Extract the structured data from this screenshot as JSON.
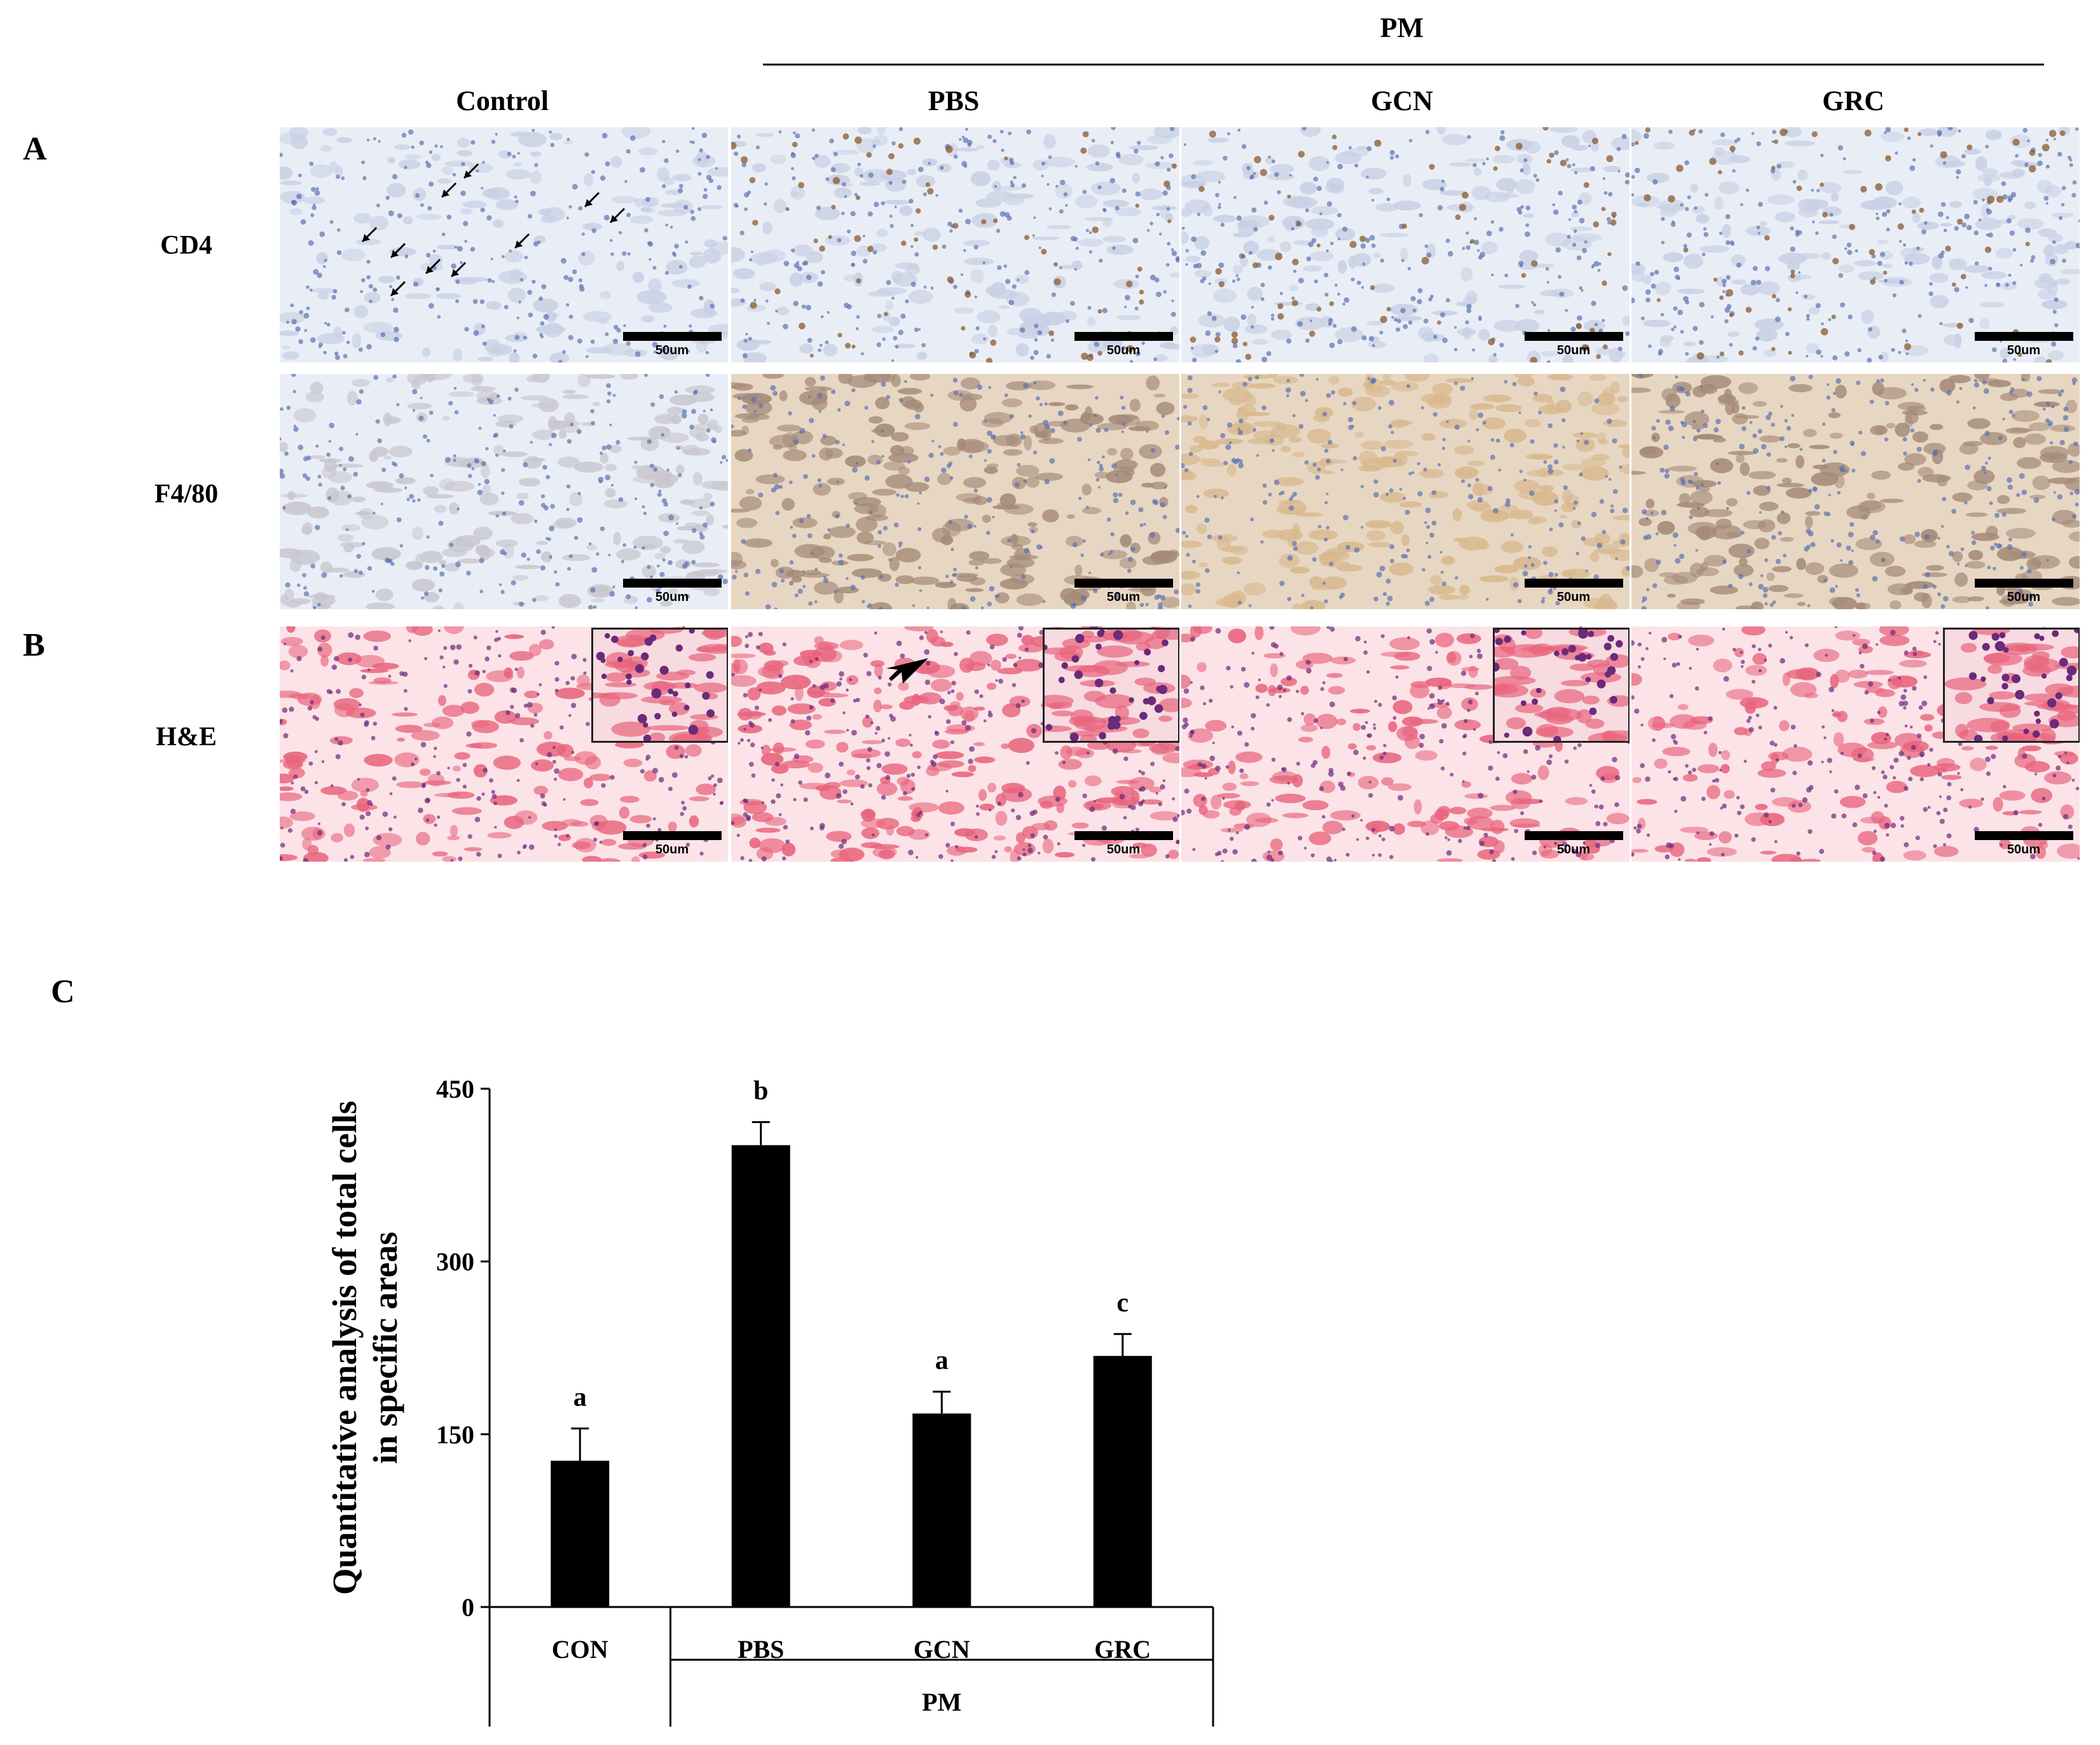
{
  "figure": {
    "panel_letters": [
      "A",
      "B",
      "C"
    ],
    "group_label": "PM",
    "columns": [
      "Control",
      "PBS",
      "GCN",
      "GRC"
    ],
    "rows": [
      "CD4",
      "F4/80",
      "H&E"
    ],
    "scale_bar_label": "50um"
  },
  "colors": {
    "ihc_background": "#e9eef6",
    "ihc_nuclei": "#5c72b0",
    "dab_brown": "#8a5a2c",
    "he_pink": "#e8647c",
    "he_nuclei": "#6b2a7a",
    "bar": "#000000"
  },
  "chart_data": {
    "type": "bar",
    "categories": [
      "CON",
      "PBS",
      "GCN",
      "GRC"
    ],
    "values": [
      127,
      401,
      168,
      218
    ],
    "errors": [
      28,
      20,
      19,
      19
    ],
    "significance_letters": [
      "a",
      "b",
      "a",
      "c"
    ],
    "group_label": "PM",
    "group_members": [
      "PBS",
      "GCN",
      "GRC"
    ],
    "ylabel": "Quantitative analysis of total cells in specific areas",
    "ylim": [
      0,
      450
    ],
    "yticks": [
      "0",
      "150",
      "300",
      "450"
    ],
    "grid": false,
    "legend": "none"
  }
}
